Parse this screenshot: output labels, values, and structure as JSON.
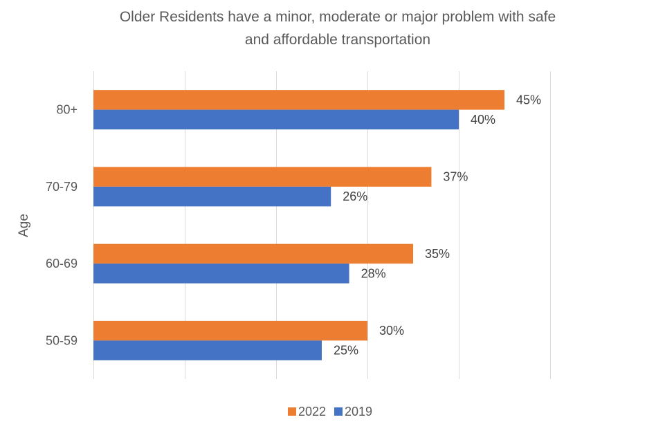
{
  "chart_data": {
    "type": "bar",
    "orientation": "horizontal",
    "title": [
      "Older Residents have a minor, moderate or major problem with safe",
      "and affordable transportation"
    ],
    "xlabel": "",
    "ylabel": "Age",
    "categories": [
      "80+",
      "70-79",
      "60-69",
      "50-59"
    ],
    "series": [
      {
        "name": "2022",
        "values": [
          45,
          37,
          35,
          30
        ],
        "labels": [
          "45%",
          "37%",
          "35%",
          "30%"
        ],
        "color": "#ED7D31"
      },
      {
        "name": "2019",
        "values": [
          40,
          26,
          28,
          25
        ],
        "labels": [
          "40%",
          "26%",
          "28%",
          "25%"
        ],
        "color": "#4472C4"
      }
    ],
    "xlim": [
      0,
      50
    ],
    "x_gridlines": [
      0,
      10,
      20,
      30,
      40,
      50
    ],
    "grid": true,
    "legend_position": "bottom",
    "gridline_color": "#D9D9D9"
  }
}
